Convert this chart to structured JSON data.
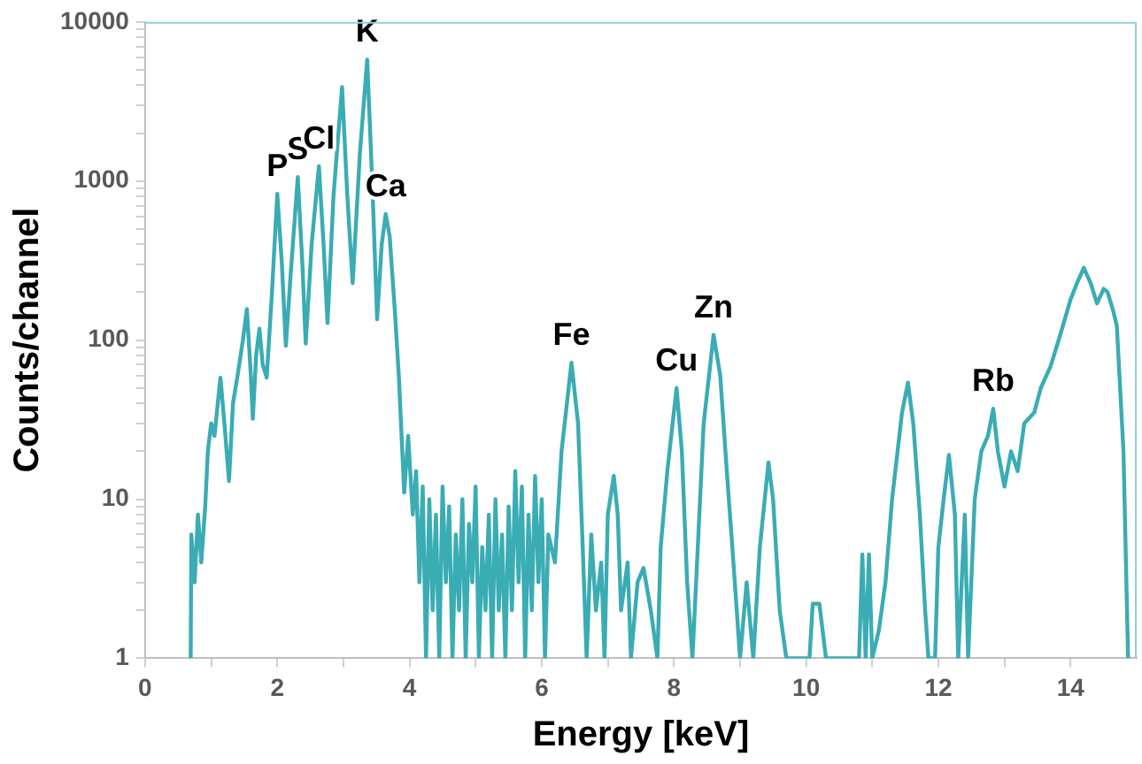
{
  "chart_data": {
    "type": "line",
    "xlabel": "Energy [keV]",
    "ylabel": "Counts/channel",
    "log": "y",
    "grid": false,
    "legend": false,
    "marker": "none",
    "line_style": "solid",
    "xlim": [
      0,
      15
    ],
    "xticks": [
      0,
      {
        "value": 1,
        "label": null
      },
      2,
      {
        "value": 3,
        "label": null
      },
      4,
      {
        "value": 5,
        "label": null
      },
      6,
      {
        "value": 7,
        "label": null
      },
      8,
      {
        "value": 9,
        "label": null
      },
      10,
      {
        "value": 11,
        "label": null
      },
      12,
      {
        "value": 13,
        "label": null
      },
      14
    ],
    "ylim": [
      1,
      10000
    ],
    "yticks": [
      1,
      {
        "value": 2,
        "label": null
      },
      {
        "value": 3,
        "label": null
      },
      {
        "value": 4,
        "label": null
      },
      {
        "value": 5,
        "label": null
      },
      {
        "value": 6,
        "label": null
      },
      {
        "value": 7,
        "label": null
      },
      {
        "value": 8,
        "label": null
      },
      {
        "value": 9,
        "label": null
      },
      10,
      {
        "value": 20,
        "label": null
      },
      {
        "value": 30,
        "label": null
      },
      {
        "value": 40,
        "label": null
      },
      {
        "value": 50,
        "label": null
      },
      {
        "value": 60,
        "label": null
      },
      {
        "value": 70,
        "label": null
      },
      {
        "value": 80,
        "label": null
      },
      {
        "value": 90,
        "label": null
      },
      100,
      {
        "value": 200,
        "label": null
      },
      {
        "value": 300,
        "label": null
      },
      {
        "value": 400,
        "label": null
      },
      {
        "value": 500,
        "label": null
      },
      {
        "value": 600,
        "label": null
      },
      {
        "value": 700,
        "label": null
      },
      {
        "value": 800,
        "label": null
      },
      {
        "value": 900,
        "label": null
      },
      1000,
      {
        "value": 2000,
        "label": null
      },
      {
        "value": 3000,
        "label": null
      },
      {
        "value": 4000,
        "label": null
      },
      {
        "value": 5000,
        "label": null
      },
      {
        "value": 6000,
        "label": null
      },
      {
        "value": 7000,
        "label": null
      },
      {
        "value": 8000,
        "label": null
      },
      {
        "value": 9000,
        "label": null
      },
      10000
    ],
    "x": [
      0.69,
      0.7,
      0.75,
      0.8,
      0.85,
      0.91,
      0.95,
      1.0,
      1.05,
      1.1,
      1.14,
      1.2,
      1.27,
      1.33,
      1.4,
      1.48,
      1.54,
      1.6,
      1.63,
      1.68,
      1.73,
      1.78,
      1.84,
      1.92,
      2.0,
      2.07,
      2.13,
      2.2,
      2.31,
      2.38,
      2.43,
      2.52,
      2.63,
      2.7,
      2.76,
      2.85,
      2.98,
      3.06,
      3.14,
      3.25,
      3.36,
      3.44,
      3.51,
      3.58,
      3.64,
      3.7,
      3.78,
      3.84,
      3.92,
      3.98,
      4.05,
      4.1,
      4.15,
      4.2,
      4.25,
      4.3,
      4.35,
      4.4,
      4.45,
      4.5,
      4.55,
      4.6,
      4.65,
      4.7,
      4.75,
      4.8,
      4.85,
      4.9,
      4.95,
      5.0,
      5.05,
      5.1,
      5.15,
      5.2,
      5.25,
      5.3,
      5.35,
      5.4,
      5.45,
      5.5,
      5.55,
      5.6,
      5.65,
      5.7,
      5.75,
      5.8,
      5.85,
      5.9,
      5.95,
      6.0,
      6.05,
      6.1,
      6.2,
      6.3,
      6.45,
      6.55,
      6.62,
      6.68,
      6.75,
      6.82,
      6.9,
      6.95,
      7.0,
      7.09,
      7.15,
      7.2,
      7.3,
      7.35,
      7.45,
      7.54,
      7.65,
      7.75,
      7.8,
      7.9,
      8.04,
      8.12,
      8.2,
      8.28,
      8.35,
      8.45,
      8.6,
      8.7,
      8.8,
      8.9,
      9.0,
      9.1,
      9.2,
      9.3,
      9.43,
      9.5,
      9.6,
      9.7,
      9.9,
      10.05,
      10.1,
      10.2,
      10.3,
      10.8,
      10.85,
      10.9,
      10.95,
      11.0,
      11.1,
      11.2,
      11.3,
      11.45,
      11.54,
      11.62,
      11.72,
      11.8,
      11.85,
      11.95,
      12.0,
      12.08,
      12.16,
      12.25,
      12.3,
      12.4,
      12.45,
      12.55,
      12.65,
      12.75,
      12.83,
      12.9,
      13.0,
      13.1,
      13.2,
      13.3,
      13.45,
      13.55,
      13.7,
      13.85,
      14.0,
      14.1,
      14.2,
      14.3,
      14.4,
      14.5,
      14.56,
      14.65,
      14.7,
      14.8,
      14.87
    ],
    "series": [
      {
        "color": "#3aacb4",
        "values": [
          1,
          6,
          3,
          8,
          4,
          9,
          20,
          30,
          25,
          40,
          58,
          30,
          13,
          40,
          60,
          100,
          157,
          60,
          32,
          80,
          118,
          70,
          58,
          200,
          830,
          300,
          92,
          250,
          1060,
          300,
          95,
          400,
          1240,
          400,
          128,
          800,
          3900,
          800,
          228,
          1500,
          5800,
          900,
          135,
          400,
          620,
          450,
          150,
          58,
          11,
          25,
          8,
          15,
          3,
          12,
          1,
          10,
          2,
          8,
          1,
          12,
          3,
          9,
          1,
          6,
          2,
          10,
          1,
          7,
          3,
          12,
          1,
          5,
          2,
          8,
          1,
          10,
          2,
          6,
          1,
          9,
          2,
          15,
          3,
          12,
          1,
          8,
          2,
          14,
          3,
          10,
          1,
          6,
          4,
          20,
          72,
          30,
          5,
          1,
          6,
          2,
          4,
          1,
          8,
          14,
          8,
          2,
          4,
          1,
          3,
          3.7,
          2,
          1,
          5,
          15,
          50,
          20,
          3,
          1,
          4,
          30,
          108,
          60,
          15,
          4,
          1,
          3,
          1,
          5,
          17,
          10,
          2,
          1,
          1,
          1,
          2.2,
          2.2,
          1,
          1,
          4.5,
          1,
          4.5,
          1,
          1.5,
          3,
          10,
          35,
          54,
          30,
          8,
          2,
          1,
          1,
          5,
          10,
          19,
          8,
          1,
          8,
          1,
          10,
          20,
          25,
          37,
          20,
          12,
          20,
          15,
          30,
          35,
          50,
          69,
          110,
          180,
          230,
          285,
          230,
          170,
          210,
          200,
          150,
          122,
          20,
          1
        ]
      }
    ],
    "annotations": [
      {
        "text": "P",
        "x": 2.0,
        "y": 830
      },
      {
        "text": "S",
        "x": 2.31,
        "y": 1060
      },
      {
        "text": "Cl",
        "x": 2.63,
        "y": 1240
      },
      {
        "text": "K",
        "x": 3.36,
        "y": 5800
      },
      {
        "text": "Ca",
        "x": 3.64,
        "y": 620
      },
      {
        "text": "Fe",
        "x": 6.45,
        "y": 72
      },
      {
        "text": "Cu",
        "x": 8.04,
        "y": 50
      },
      {
        "text": "Zn",
        "x": 8.6,
        "y": 108
      },
      {
        "text": "Rb",
        "x": 12.83,
        "y": 37
      }
    ]
  }
}
